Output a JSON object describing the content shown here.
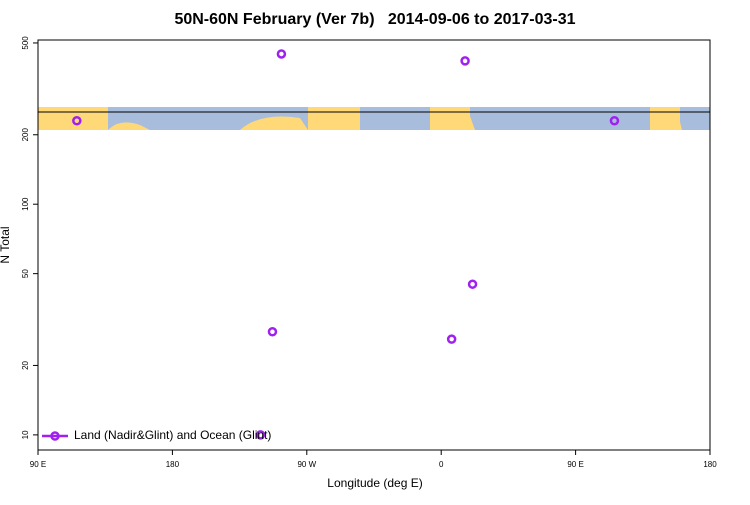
{
  "chart_data": {
    "type": "scatter",
    "title": "50N-60N February (Ver 7b)   2014-09-06 to 2017-03-31",
    "x_label": "Longitude (deg E)",
    "y_label": "N Total",
    "log_y": true,
    "legend": "bottom-left",
    "xlim": [
      90,
      540
    ],
    "ylim": [
      8.6,
      515
    ],
    "xticks": [
      {
        "value": 90,
        "label": "90 E"
      },
      180,
      {
        "value": 270,
        "label": "90 W"
      },
      {
        "value": 360,
        "label": "0"
      },
      {
        "value": 450,
        "label": "90 E"
      },
      {
        "value": 540,
        "label": "180"
      }
    ],
    "yticks": [
      10,
      20,
      50,
      100,
      200,
      500
    ],
    "series": [
      {
        "name": "Land (Nadir&Glint) and Ocean (Glint)",
        "color": "#a020f0",
        "x": [
          116,
          253,
          376,
          476,
          381,
          247,
          367,
          239
        ],
        "values": [
          230,
          448,
          418,
          230,
          45,
          28,
          26,
          10
        ]
      }
    ]
  }
}
